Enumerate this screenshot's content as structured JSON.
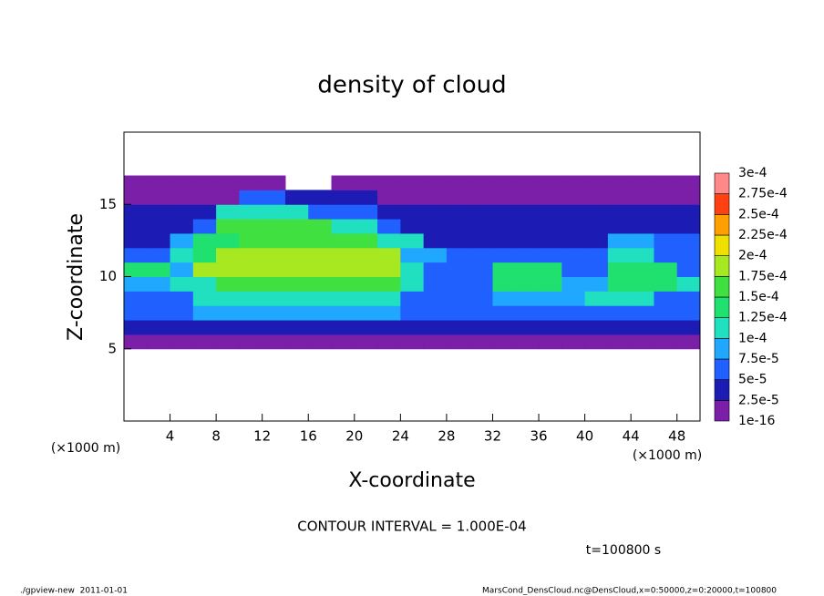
{
  "chart_data": {
    "type": "heatmap",
    "title": "density of cloud",
    "x_label": "X-coordinate",
    "y_label": "Z-coordinate",
    "x_unit": "(×1000 m)",
    "contour_interval": "CONTOUR INTERVAL = 1.000E-04",
    "time": "t=100800 s",
    "footer_left": "./gpview-new  2011-01-01",
    "footer_right": "MarsCond_DensCloud.nc@DensCloud,x=0:50000,z=0:20000,t=100800",
    "xlim": [
      0,
      50
    ],
    "ylim": [
      0,
      20
    ],
    "xticks": [
      4,
      8,
      12,
      16,
      20,
      24,
      28,
      32,
      36,
      40,
      44,
      48
    ],
    "yticks": [
      5,
      10,
      15
    ],
    "levels": [
      {
        "value": 1e-16,
        "label": "1e-16"
      },
      {
        "value": 2.5e-05,
        "label": "2.5e-5"
      },
      {
        "value": 5e-05,
        "label": "5e-5"
      },
      {
        "value": 7.5e-05,
        "label": "7.5e-5"
      },
      {
        "value": 0.0001,
        "label": "1e-4"
      },
      {
        "value": 0.000125,
        "label": "1.25e-4"
      },
      {
        "value": 0.00015,
        "label": "1.5e-4"
      },
      {
        "value": 0.000175,
        "label": "1.75e-4"
      },
      {
        "value": 0.0002,
        "label": "2e-4"
      },
      {
        "value": 0.000225,
        "label": "2.25e-4"
      },
      {
        "value": 0.00025,
        "label": "2.5e-4"
      },
      {
        "value": 0.000275,
        "label": "2.75e-4"
      },
      {
        "value": 0.0003,
        "label": "3e-4"
      }
    ],
    "colors": [
      "#7b1fa8",
      "#1c1cb4",
      "#2060ff",
      "#20a8ff",
      "#20e0c0",
      "#20e070",
      "#40e040",
      "#a8e820",
      "#f0e000",
      "#ffa000",
      "#ff4010",
      "#ff8888"
    ],
    "x": [
      1,
      3,
      5,
      7,
      9,
      11,
      13,
      15,
      17,
      19,
      21,
      23,
      25,
      27,
      29,
      31,
      33,
      35,
      37,
      39,
      41,
      43,
      45,
      47,
      49
    ],
    "y": [
      5.5,
      6.5,
      7.5,
      8.5,
      9.5,
      10.5,
      11.5,
      12.5,
      13.5,
      14.5,
      15.5,
      16.5
    ],
    "z": [
      [
        1e-05,
        1e-05,
        1e-05,
        1e-05,
        1e-05,
        1e-05,
        1e-05,
        1e-05,
        1e-05,
        1e-05,
        1e-05,
        1e-05,
        1e-05,
        1e-05,
        1e-05,
        1e-05,
        1e-05,
        1e-05,
        1e-05,
        1e-05,
        1e-05,
        1e-05,
        1e-05,
        1e-05,
        1e-05
      ],
      [
        3e-05,
        3e-05,
        3e-05,
        3e-05,
        3e-05,
        3e-05,
        3e-05,
        3e-05,
        3e-05,
        3e-05,
        3e-05,
        3e-05,
        3e-05,
        3e-05,
        3e-05,
        3e-05,
        3e-05,
        3e-05,
        3e-05,
        3e-05,
        3e-05,
        3e-05,
        3e-05,
        3e-05,
        3e-05
      ],
      [
        6e-05,
        6e-05,
        6e-05,
        8e-05,
        8e-05,
        8e-05,
        8e-05,
        8e-05,
        8e-05,
        8e-05,
        8e-05,
        8e-05,
        5e-05,
        5e-05,
        5e-05,
        5e-05,
        5e-05,
        5e-05,
        5e-05,
        5e-05,
        5e-05,
        5e-05,
        5e-05,
        5e-05,
        5e-05
      ],
      [
        6e-05,
        6e-05,
        6e-05,
        0.0001,
        0.00011,
        0.00011,
        0.00011,
        0.00011,
        0.00011,
        0.00011,
        0.00011,
        0.00011,
        6e-05,
        6e-05,
        6e-05,
        6e-05,
        8e-05,
        8e-05,
        8e-05,
        8e-05,
        0.00011,
        0.00011,
        0.00011,
        7e-05,
        7e-05
      ],
      [
        9e-05,
        9e-05,
        0.00011,
        0.00011,
        0.00016,
        0.00016,
        0.00016,
        0.00016,
        0.00016,
        0.00016,
        0.00016,
        0.00016,
        0.00011,
        5e-05,
        5e-05,
        5e-05,
        0.00013,
        0.00013,
        0.00013,
        8e-05,
        8e-05,
        0.00014,
        0.00014,
        0.00014,
        0.0001
      ],
      [
        0.00013,
        0.00013,
        9e-05,
        0.00018,
        0.00018,
        0.00018,
        0.00018,
        0.00018,
        0.00018,
        0.00018,
        0.00018,
        0.00018,
        0.00012,
        5e-05,
        5e-05,
        5e-05,
        0.00013,
        0.00013,
        0.00013,
        6e-05,
        6e-05,
        0.00014,
        0.00014,
        0.00014,
        6e-05
      ],
      [
        5e-05,
        5e-05,
        0.00012,
        0.00014,
        0.00018,
        0.00018,
        0.00018,
        0.00018,
        0.00018,
        0.00018,
        0.00018,
        0.00018,
        8e-05,
        8e-05,
        5e-05,
        5e-05,
        5e-05,
        5e-05,
        5e-05,
        5e-05,
        5e-05,
        0.00012,
        0.00012,
        5e-05,
        5e-05
      ],
      [
        4e-05,
        4e-05,
        9e-05,
        0.00013,
        0.00013,
        0.00017,
        0.00017,
        0.00017,
        0.00017,
        0.00017,
        0.00017,
        0.0001,
        0.0001,
        4e-05,
        4e-05,
        4e-05,
        4e-05,
        4e-05,
        4e-05,
        4e-05,
        4e-05,
        9e-05,
        9e-05,
        5e-05,
        5e-05
      ],
      [
        4e-05,
        4e-05,
        4e-05,
        7e-05,
        0.00015,
        0.00015,
        0.00015,
        0.00015,
        0.00015,
        0.00011,
        0.00011,
        7e-05,
        4e-05,
        4e-05,
        4e-05,
        4e-05,
        4e-05,
        4e-05,
        4e-05,
        4e-05,
        4e-05,
        4e-05,
        4e-05,
        4e-05,
        4e-05
      ],
      [
        3e-05,
        3e-05,
        3e-05,
        3e-05,
        0.00012,
        0.00012,
        0.00012,
        0.00012,
        6e-05,
        6e-05,
        6e-05,
        3e-05,
        3e-05,
        3e-05,
        3e-05,
        3e-05,
        3e-05,
        3e-05,
        3e-05,
        3e-05,
        3e-05,
        3e-05,
        3e-05,
        3e-05,
        3e-05
      ],
      [
        2e-05,
        2e-05,
        2e-05,
        2e-05,
        2e-05,
        6e-05,
        6e-05,
        3e-05,
        3e-05,
        3e-05,
        3e-05,
        2e-05,
        2e-05,
        2e-05,
        2e-05,
        2e-05,
        2e-05,
        2e-05,
        2e-05,
        2e-05,
        2e-05,
        2e-05,
        2e-05,
        2e-05,
        2e-05
      ],
      [
        1e-05,
        1e-05,
        1e-05,
        1e-05,
        1e-05,
        1e-05,
        1e-05,
        null,
        null,
        1e-05,
        1e-05,
        1e-05,
        1e-05,
        1e-05,
        1e-05,
        1e-05,
        1e-05,
        1e-05,
        1e-05,
        1e-05,
        1e-05,
        1e-05,
        1e-05,
        1e-05,
        1e-05
      ]
    ]
  }
}
